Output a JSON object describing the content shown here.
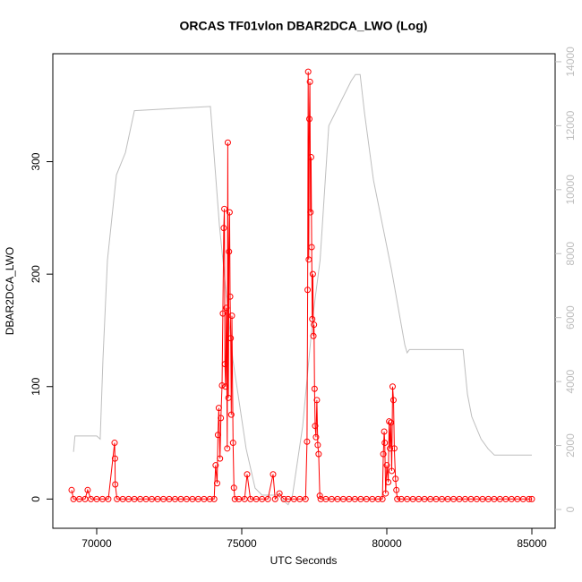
{
  "chart_data": {
    "type": "line",
    "title": "ORCAS TF01vlon DBAR2DCA_LWO (Log)",
    "xlabel": "UTC Seconds",
    "ylabel": "DBAR2DCA_LWO",
    "xlim": [
      68488,
      85802
    ],
    "xticks": [
      70000,
      75000,
      80000,
      85000
    ],
    "ylim": [
      -26,
      396
    ],
    "yticks": [
      0,
      100,
      200,
      300
    ],
    "y2lim": [
      -587,
      14250
    ],
    "y2ticks": [
      0,
      2000,
      4000,
      6000,
      8000,
      10000,
      12000,
      14000
    ],
    "series": [
      {
        "color": "#bebebe",
        "axis": "y2",
        "x": [
          69200,
          69250,
          70000,
          70120,
          70215,
          70370,
          70680,
          70990,
          71300,
          73920,
          74230,
          74690,
          75150,
          75460,
          75700,
          76230,
          76600,
          76750,
          77100,
          77460,
          77700,
          78000,
          78770,
          78920,
          79080,
          79230,
          79540,
          80160,
          80620,
          80700,
          80780,
          82630,
          82780,
          82930,
          83250,
          83490,
          83710,
          85000
        ],
        "values": [
          1800,
          2300,
          2300,
          2200,
          4700,
          7800,
          10460,
          11160,
          12470,
          12600,
          8900,
          4700,
          1900,
          670,
          450,
          450,
          150,
          450,
          2600,
          6100,
          7800,
          12000,
          13400,
          13600,
          13600,
          12400,
          10300,
          7500,
          5150,
          4900,
          5000,
          5000,
          3600,
          2900,
          2200,
          1900,
          1700,
          1700
        ]
      },
      {
        "color": "#ff0000",
        "x": [
          69136,
          69200,
          69400,
          69600,
          69690,
          69800,
          70000,
          70200,
          70400,
          70617,
          70630,
          70640,
          70700,
          70900,
          71100,
          71300,
          71500,
          71700,
          71900,
          72100,
          72300,
          72500,
          72700,
          72900,
          73100,
          73300,
          73500,
          73700,
          73900,
          74050,
          74100,
          74150,
          74180,
          74210,
          74250,
          74280,
          74320,
          74350,
          74380,
          74400,
          74420,
          74440,
          74470,
          74500,
          74520,
          74540,
          74560,
          74580,
          74600,
          74620,
          74640,
          74660,
          74700,
          74730,
          74760,
          74900,
          75100,
          75185,
          75300,
          75500,
          75700,
          75900,
          76080,
          76150,
          76300,
          76450,
          76600,
          76800,
          77000,
          77200,
          77250,
          77270,
          77290,
          77310,
          77330,
          77350,
          77370,
          77390,
          77410,
          77430,
          77450,
          77470,
          77490,
          77510,
          77530,
          77560,
          77590,
          77620,
          77650,
          77690,
          77720,
          77900,
          78100,
          78300,
          78500,
          78700,
          78900,
          79100,
          79300,
          79500,
          79700,
          79850,
          79880,
          79910,
          79930,
          79960,
          80000,
          80050,
          80080,
          80110,
          80140,
          80170,
          80200,
          80230,
          80260,
          80300,
          80330,
          80360,
          80500,
          80700,
          80900,
          81100,
          81300,
          81500,
          81700,
          81900,
          82100,
          82300,
          82500,
          82700,
          82900,
          83100,
          83300,
          83500,
          83700,
          83900,
          84100,
          84300,
          84500,
          84700,
          84900,
          85000
        ],
        "values": [
          8,
          0,
          0,
          0,
          8,
          0,
          0,
          0,
          0,
          50,
          36,
          13,
          0,
          0,
          0,
          0,
          0,
          0,
          0,
          0,
          0,
          0,
          0,
          0,
          0,
          0,
          0,
          0,
          0,
          0,
          30,
          14,
          57,
          81,
          36,
          72,
          101,
          165,
          241,
          258,
          120,
          100,
          170,
          45,
          317,
          90,
          220,
          255,
          180,
          143,
          75,
          163,
          50,
          10,
          0,
          0,
          0,
          22,
          0,
          0,
          0,
          0,
          22,
          0,
          5,
          0,
          0,
          0,
          0,
          0,
          51,
          186,
          380,
          213,
          338,
          371,
          255,
          304,
          224,
          160,
          200,
          145,
          155,
          98,
          65,
          55,
          88,
          48,
          40,
          3,
          0,
          0,
          0,
          0,
          0,
          0,
          0,
          0,
          0,
          0,
          0,
          0,
          40,
          60,
          50,
          5,
          30,
          15,
          69,
          45,
          68,
          25,
          100,
          88,
          45,
          18,
          8,
          0,
          0,
          0,
          0,
          0,
          0,
          0,
          0,
          0,
          0,
          0,
          0,
          0,
          0,
          0,
          0,
          0,
          0,
          0,
          0,
          0,
          0,
          0,
          0,
          0
        ]
      }
    ]
  }
}
